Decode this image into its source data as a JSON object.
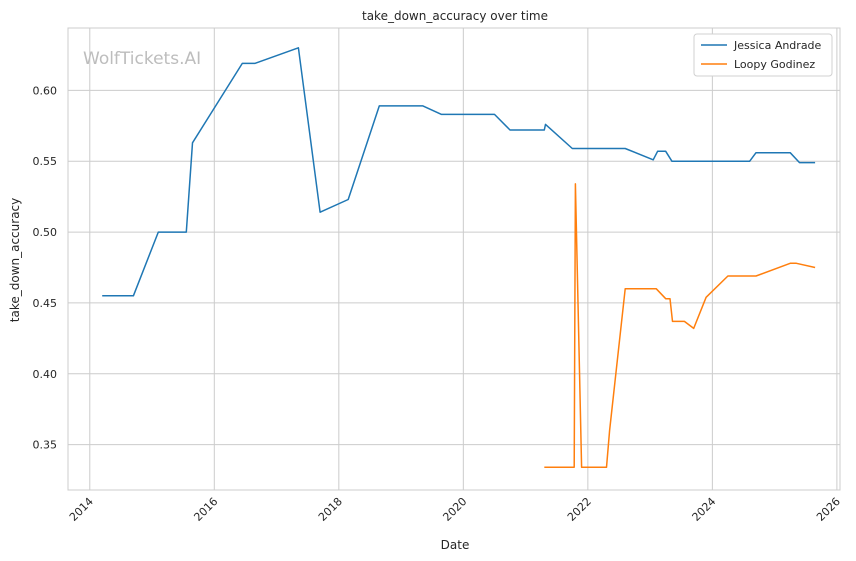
{
  "chart_data": {
    "type": "line",
    "title": "take_down_accuracy over time",
    "xlabel": "Date",
    "ylabel": "take_down_accuracy",
    "watermark": "WolfTickets.AI",
    "xlim": [
      2013.65,
      2026.05
    ],
    "ylim": [
      0.318,
      0.644
    ],
    "x_ticks": [
      2014,
      2016,
      2018,
      2020,
      2022,
      2024,
      2026
    ],
    "x_tick_labels": [
      "2014",
      "2016",
      "2018",
      "2020",
      "2022",
      "2024",
      "2026"
    ],
    "y_ticks": [
      0.35,
      0.4,
      0.45,
      0.5,
      0.55,
      0.6
    ],
    "y_tick_labels": [
      "0.35",
      "0.40",
      "0.45",
      "0.50",
      "0.55",
      "0.60"
    ],
    "grid": true,
    "legend_position": "top-right",
    "series": [
      {
        "name": "Jessica Andrade",
        "color": "#1f77b4",
        "points": [
          [
            2014.2,
            0.455
          ],
          [
            2014.7,
            0.455
          ],
          [
            2015.1,
            0.5
          ],
          [
            2015.55,
            0.5
          ],
          [
            2015.65,
            0.563
          ],
          [
            2016.45,
            0.619
          ],
          [
            2016.65,
            0.619
          ],
          [
            2017.35,
            0.63
          ],
          [
            2017.7,
            0.514
          ],
          [
            2018.15,
            0.523
          ],
          [
            2018.65,
            0.589
          ],
          [
            2019.35,
            0.589
          ],
          [
            2019.65,
            0.583
          ],
          [
            2020.5,
            0.583
          ],
          [
            2020.75,
            0.572
          ],
          [
            2021.3,
            0.572
          ],
          [
            2021.32,
            0.576
          ],
          [
            2021.75,
            0.559
          ],
          [
            2022.6,
            0.559
          ],
          [
            2023.05,
            0.551
          ],
          [
            2023.12,
            0.557
          ],
          [
            2023.25,
            0.557
          ],
          [
            2023.35,
            0.55
          ],
          [
            2024.6,
            0.55
          ],
          [
            2024.7,
            0.556
          ],
          [
            2025.25,
            0.556
          ],
          [
            2025.4,
            0.549
          ],
          [
            2025.65,
            0.549
          ]
        ]
      },
      {
        "name": "Loopy Godinez",
        "color": "#ff7f0e",
        "points": [
          [
            2021.3,
            0.334
          ],
          [
            2021.78,
            0.334
          ],
          [
            2021.8,
            0.534
          ],
          [
            2021.9,
            0.334
          ],
          [
            2022.3,
            0.334
          ],
          [
            2022.35,
            0.36
          ],
          [
            2022.6,
            0.46
          ],
          [
            2023.1,
            0.46
          ],
          [
            2023.25,
            0.453
          ],
          [
            2023.32,
            0.453
          ],
          [
            2023.36,
            0.437
          ],
          [
            2023.55,
            0.437
          ],
          [
            2023.7,
            0.432
          ],
          [
            2023.9,
            0.454
          ],
          [
            2024.25,
            0.469
          ],
          [
            2024.7,
            0.469
          ],
          [
            2025.25,
            0.478
          ],
          [
            2025.35,
            0.478
          ],
          [
            2025.65,
            0.475
          ]
        ]
      }
    ]
  }
}
